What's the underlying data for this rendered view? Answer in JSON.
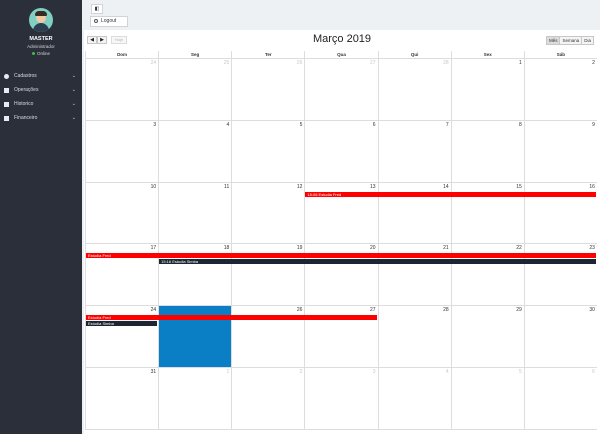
{
  "sidebar": {
    "user": {
      "name": "MASTER",
      "role": "Administrador",
      "status": "Online"
    },
    "menu": [
      {
        "label": "Cadastros",
        "icon": "circle-plus-icon"
      },
      {
        "label": "Operações",
        "icon": "book-icon"
      },
      {
        "label": "Historico",
        "icon": "folder-icon"
      },
      {
        "label": "Financeiro",
        "icon": "money-icon"
      }
    ]
  },
  "toolbar": {
    "toggle_label": "◧",
    "logout_label": "Logout"
  },
  "calendar": {
    "title": "Março 2019",
    "today_label": "Hoje",
    "prev_label": "◀",
    "next_label": "▶",
    "views": [
      "Mês",
      "Semana",
      "Dia"
    ],
    "active_view": "Mês",
    "weekdays": [
      "Dom",
      "Seg",
      "Ter",
      "Qua",
      "Qui",
      "Sex",
      "Sáb"
    ],
    "weeks": [
      [
        "24",
        "25",
        "26",
        "27",
        "28",
        "1",
        "2"
      ],
      [
        "3",
        "4",
        "5",
        "6",
        "7",
        "8",
        "9"
      ],
      [
        "10",
        "11",
        "12",
        "13",
        "14",
        "15",
        "16"
      ],
      [
        "17",
        "18",
        "19",
        "20",
        "21",
        "22",
        "23"
      ],
      [
        "24",
        "25",
        "26",
        "27",
        "28",
        "29",
        "30"
      ],
      [
        "31",
        "1",
        "2",
        "3",
        "4",
        "5",
        "6"
      ]
    ],
    "other_month_first_week": 5,
    "other_month_last_week_from": 1,
    "today": {
      "week": 4,
      "day": 1
    },
    "events": [
      {
        "week": 2,
        "start_day": 3,
        "span": 4,
        "row": 0,
        "time": "15:08",
        "title": "Estudia Fred",
        "color": "#ff0000"
      },
      {
        "week": 3,
        "start_day": 0,
        "span": 7,
        "row": 0,
        "time": "",
        "title": "Estudia Fred",
        "color": "#ff0000"
      },
      {
        "week": 3,
        "start_day": 1,
        "span": 6,
        "row": 1,
        "time": "15:16",
        "title": "Estudia Simba",
        "color": "#1d2533"
      },
      {
        "week": 4,
        "start_day": 0,
        "span": 4,
        "row": 0,
        "time": "",
        "title": "Estudia Fred",
        "color": "#ff0000"
      },
      {
        "week": 4,
        "start_day": 0,
        "span": 1,
        "row": 1,
        "time": "",
        "title": "Estudia Simba",
        "color": "#1d2533"
      }
    ]
  }
}
